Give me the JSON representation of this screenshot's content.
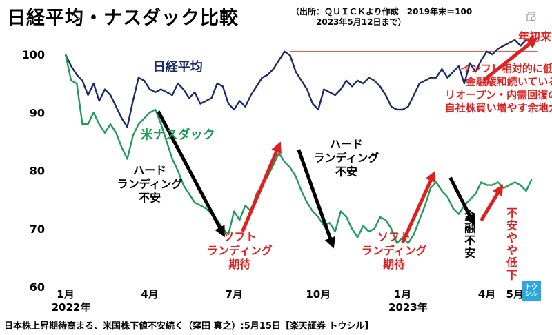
{
  "title": "日経平均・ナスダック比較",
  "source_note": "（出所：ＱＵＩＣＫより作成　2019年末＝100\n　　　2023年5月12日まで）",
  "footer": "日本株上昇期待高まる、米国株下値不安続く（窪田 真之）:5月15日【楽天証券 トウシル】",
  "brand": {
    "line1": "トウ",
    "line2": "シル"
  },
  "colors": {
    "nikkei": "#1b2a6b",
    "nasdaq": "#1f9c5a",
    "red": "#e02020",
    "black": "#000000"
  },
  "chart_data": {
    "type": "line",
    "title": "日経平均・ナスダック比較",
    "ylim": [
      60,
      100
    ],
    "yticks": [
      60,
      70,
      80,
      90,
      100
    ],
    "xlim": [
      0,
      17
    ],
    "xticks": [
      {
        "x": 0,
        "label": "1月",
        "sub": "2022年"
      },
      {
        "x": 3,
        "label": "4月",
        "sub": ""
      },
      {
        "x": 6,
        "label": "7月",
        "sub": ""
      },
      {
        "x": 9,
        "label": "10月",
        "sub": ""
      },
      {
        "x": 12,
        "label": "1月",
        "sub": "2023年"
      },
      {
        "x": 15,
        "label": "4月",
        "sub": ""
      },
      {
        "x": 16,
        "label": "5月",
        "sub": ""
      }
    ],
    "series": [
      {
        "name": "日経平均",
        "color": "#1b2a6b",
        "x": [
          0,
          0.2,
          0.4,
          0.6,
          0.8,
          1.0,
          1.2,
          1.4,
          1.6,
          1.8,
          2.0,
          2.2,
          2.4,
          2.6,
          2.8,
          3.0,
          3.2,
          3.4,
          3.6,
          3.8,
          4.0,
          4.2,
          4.4,
          4.6,
          4.8,
          5.0,
          5.2,
          5.4,
          5.6,
          5.8,
          6.0,
          6.2,
          6.4,
          6.6,
          6.8,
          7.0,
          7.2,
          7.4,
          7.6,
          7.8,
          8.0,
          8.2,
          8.4,
          8.6,
          8.8,
          9.0,
          9.2,
          9.4,
          9.6,
          9.8,
          10.0,
          10.2,
          10.4,
          10.6,
          10.8,
          11.0,
          11.2,
          11.4,
          11.6,
          11.8,
          12.0,
          12.2,
          12.4,
          12.6,
          12.8,
          13.0,
          13.2,
          13.4,
          13.6,
          13.8,
          14.0,
          14.2,
          14.4,
          14.6,
          14.8,
          15.0,
          15.2,
          15.4,
          15.6,
          15.8,
          16.0,
          16.2,
          16.4,
          16.6
        ],
        "values": [
          100,
          98,
          96.5,
          95.5,
          93,
          95,
          92,
          94,
          93,
          91,
          89,
          87.5,
          92,
          96,
          95.5,
          94,
          93.5,
          94,
          93.5,
          93,
          95,
          94,
          92.5,
          93.5,
          91.5,
          92,
          92.5,
          95,
          94.5,
          91.5,
          90.5,
          92,
          91,
          93,
          94.5,
          96,
          96.5,
          97.5,
          99,
          100.5,
          99.8,
          97,
          95.5,
          94,
          91.5,
          90.5,
          94,
          93.5,
          93,
          94,
          95.5,
          94.5,
          95.5,
          95,
          96,
          95.5,
          94.5,
          93,
          91,
          90.5,
          90.5,
          91,
          93,
          95,
          95.5,
          96,
          96,
          97.5,
          96,
          97,
          98,
          95,
          98.5,
          97,
          99,
          100.5,
          100,
          101,
          101.5,
          102,
          102.5,
          101.5,
          102.5,
          102
        ]
      },
      {
        "name": "米ナスダック",
        "color": "#1f9c5a",
        "x": [
          0,
          0.2,
          0.4,
          0.6,
          0.8,
          1.0,
          1.2,
          1.4,
          1.6,
          1.8,
          2.0,
          2.2,
          2.4,
          2.6,
          2.8,
          3.0,
          3.2,
          3.4,
          3.6,
          3.8,
          4.0,
          4.2,
          4.4,
          4.6,
          4.8,
          5.0,
          5.2,
          5.4,
          5.6,
          5.8,
          6.0,
          6.2,
          6.4,
          6.6,
          6.8,
          7.0,
          7.2,
          7.4,
          7.6,
          7.8,
          8.0,
          8.2,
          8.4,
          8.6,
          8.8,
          9.0,
          9.2,
          9.4,
          9.6,
          9.8,
          10.0,
          10.2,
          10.4,
          10.6,
          10.8,
          11.0,
          11.2,
          11.4,
          11.6,
          11.8,
          12.0,
          12.2,
          12.4,
          12.6,
          12.8,
          13.0,
          13.2,
          13.4,
          13.6,
          13.8,
          14.0,
          14.2,
          14.4,
          14.6,
          14.8,
          15.0,
          15.2,
          15.4,
          15.6,
          15.8,
          16.0,
          16.2,
          16.4,
          16.6
        ],
        "values": [
          100,
          95.5,
          95,
          88,
          88,
          90,
          88,
          86.5,
          88,
          86.5,
          84,
          82,
          86,
          88,
          89,
          90,
          90.5,
          88,
          85,
          82,
          80,
          77.5,
          76,
          74.5,
          74,
          73.5,
          72.5,
          71.5,
          70,
          69,
          73,
          71.5,
          74,
          73,
          76,
          77.5,
          79,
          81,
          83,
          81.5,
          80.5,
          79,
          76.5,
          74.5,
          73,
          72,
          70.5,
          71,
          69.5,
          73,
          72,
          70,
          68.5,
          70.5,
          69.5,
          70,
          72,
          71.5,
          70,
          67.5,
          68.5,
          67.5,
          69,
          71.5,
          74,
          77,
          78,
          76.5,
          75.5,
          73.5,
          72.5,
          74,
          75,
          76,
          78,
          77.5,
          77.5,
          78,
          77,
          77.5,
          78,
          77.5,
          76.5,
          78.5
        ]
      }
    ],
    "reference_line": {
      "value": 100.5,
      "x_from": 8.0,
      "x_to": 16.8,
      "color": "#e02020"
    },
    "annotations": [
      {
        "id": "label-nikkei",
        "text": "日経平均",
        "color": "#1b2a6b",
        "x": 4.0,
        "y": 98.2
      },
      {
        "id": "label-nasdaq",
        "text": "米ナスダック",
        "color": "#1f9c5a",
        "x": 4.0,
        "y": 86.5
      },
      {
        "id": "label-hard-landing-1",
        "text": "ハード\nランディング\n不安",
        "color": "#000000",
        "x": 3.0,
        "y": 78.0
      },
      {
        "id": "label-soft-landing-1",
        "text": "ソフト\nランディング\n期待",
        "color": "#e02020",
        "x": 6.2,
        "y": 66.5
      },
      {
        "id": "label-hard-landing-2",
        "text": "ハード\nランディング\n不安",
        "color": "#000000",
        "x": 10.0,
        "y": 82.5
      },
      {
        "id": "label-soft-landing-2",
        "text": "ソフト\nランディング\n期待",
        "color": "#e02020",
        "x": 11.7,
        "y": 66.5
      },
      {
        "id": "label-kinyu-fuan",
        "text": "金\n融\n不\n安",
        "color": "#000000",
        "x": 14.4,
        "y": 72.5,
        "vertical": true
      },
      {
        "id": "label-fuan-yaya-tei",
        "text": "不\n安\nや\nや\n低\n下",
        "color": "#e02020",
        "x": 15.9,
        "y": 73.0,
        "vertical": true
      },
      {
        "id": "label-ytd-high",
        "text": "年初来高値",
        "color": "#e02020",
        "x": 17.1,
        "y": 103.3
      },
      {
        "id": "label-factors",
        "text": "インフレ相対的に低い\n金融緩和続いている\nリオープン・内需回復の期待\n自社株買い増やす余地大きい",
        "color": "#e02020",
        "x": 15.9,
        "y": 94.5
      }
    ],
    "arrows": [
      {
        "color": "#000000",
        "from": [
          3.3,
          90.2
        ],
        "to": [
          5.6,
          69.2
        ]
      },
      {
        "color": "#e02020",
        "from": [
          6.3,
          69.5
        ],
        "to": [
          7.6,
          84.3
        ]
      },
      {
        "color": "#000000",
        "from": [
          8.3,
          83.6
        ],
        "to": [
          9.5,
          67.3
        ]
      },
      {
        "color": "#e02020",
        "from": [
          12.0,
          67.6
        ],
        "to": [
          13.1,
          79.3
        ]
      },
      {
        "color": "#000000",
        "from": [
          13.7,
          78.8
        ],
        "to": [
          14.5,
          71.2
        ]
      },
      {
        "color": "#e02020",
        "from": [
          14.8,
          71.4
        ],
        "to": [
          15.5,
          77.0
        ]
      },
      {
        "color": "#e02020",
        "from": [
          14.9,
          95.6
        ],
        "to": [
          16.7,
          102.5
        ]
      }
    ]
  }
}
